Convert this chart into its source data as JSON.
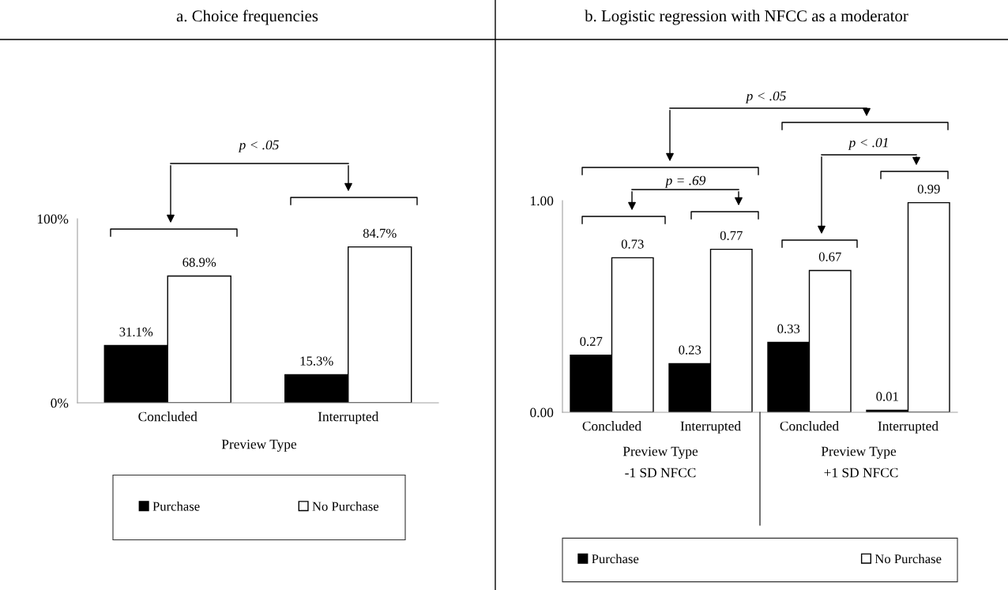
{
  "chart_data": [
    {
      "type": "bar",
      "title": "a. Choice frequencies",
      "xlabel": "Preview Type",
      "categories": [
        "Concluded",
        "Interrupted"
      ],
      "series": [
        {
          "name": "Purchase",
          "color": "#000000",
          "values": [
            31.1,
            15.3
          ],
          "value_labels": [
            "31.1%",
            "15.3%"
          ]
        },
        {
          "name": "No Purchase",
          "color": "#ffffff",
          "values": [
            68.9,
            84.7
          ],
          "value_labels": [
            "68.9%",
            "84.7%"
          ]
        }
      ],
      "ylim": [
        0,
        100
      ],
      "yticks": [
        {
          "value": 0,
          "label": "0%"
        },
        {
          "value": 100,
          "label": "100%"
        }
      ],
      "legend": "bottom",
      "grid": false,
      "annotations": [
        "p < .05"
      ]
    },
    {
      "type": "bar",
      "title": "b. Logistic regression with NFCC as a moderator",
      "xlabel": "Preview Type",
      "categories": [
        "Concluded",
        "Interrupted",
        "Concluded",
        "Interrupted"
      ],
      "series": [
        {
          "name": "Purchase",
          "color": "#000000",
          "values": [
            0.27,
            0.23,
            0.33,
            0.01
          ],
          "value_labels": [
            "0.27",
            "0.23",
            "0.33",
            "0.01"
          ]
        },
        {
          "name": "No Purchase",
          "color": "#ffffff",
          "values": [
            0.73,
            0.77,
            0.67,
            0.99
          ],
          "value_labels": [
            "0.73",
            "0.77",
            "0.67",
            "0.99"
          ]
        }
      ],
      "ylim": [
        0,
        1
      ],
      "yticks": [
        {
          "value": 0,
          "label": "0.00"
        },
        {
          "value": 1,
          "label": "1.00"
        }
      ],
      "legend": "bottom",
      "grid": false,
      "annotations": [
        "p < .05",
        "p = .69",
        "p < .01",
        "-1 SD NFCC",
        "+1 SD NFCC"
      ]
    }
  ]
}
